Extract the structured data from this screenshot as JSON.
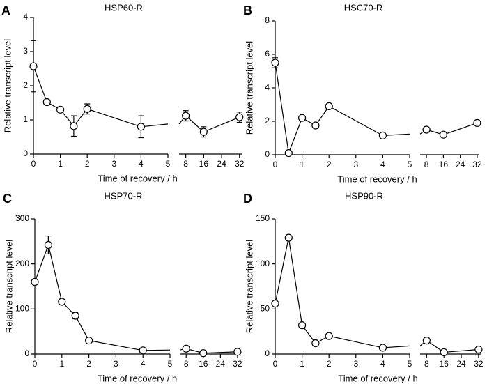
{
  "chart_data": [
    {
      "type": "line",
      "panel": "A",
      "title": "HSP60-R",
      "xlabel": "Time of recovery / h",
      "ylabel": "Relative transcript level",
      "x": [
        0,
        0.5,
        1,
        1.5,
        2,
        4,
        8,
        16,
        32
      ],
      "values": [
        2.57,
        1.52,
        1.3,
        0.82,
        1.32,
        0.8,
        1.12,
        0.65,
        1.08
      ],
      "errors": [
        0.75,
        0.08,
        0.08,
        0.3,
        0.15,
        0.32,
        0.15,
        0.15,
        0.15
      ],
      "color": "#000000",
      "xlim": [
        0,
        5
      ],
      "xticks": [
        0,
        1,
        2,
        3,
        4,
        5
      ],
      "x2lim": [
        5,
        33
      ],
      "x2ticks": [
        8,
        16,
        24,
        32
      ],
      "ylim": [
        0,
        4
      ],
      "yticks": [
        0,
        1,
        2,
        3,
        4
      ]
    },
    {
      "type": "line",
      "panel": "B",
      "title": "HSC70-R",
      "xlabel": "Time of recovery / h",
      "ylabel": "Relative transcript level",
      "x": [
        0,
        0.5,
        1,
        1.5,
        2,
        4,
        8,
        16,
        32
      ],
      "values": [
        5.5,
        0.1,
        2.2,
        1.75,
        2.9,
        1.15,
        1.5,
        1.2,
        1.9
      ],
      "errors": [
        0.3,
        0.1,
        0.1,
        0.1,
        0.1,
        0.1,
        0.1,
        0.1,
        0.1
      ],
      "color": "#000000",
      "xlim": [
        0,
        5
      ],
      "xticks": [
        0,
        1,
        2,
        3,
        4,
        5
      ],
      "x2lim": [
        5,
        33
      ],
      "x2ticks": [
        8,
        16,
        24,
        32
      ],
      "ylim": [
        0,
        8
      ],
      "yticks": [
        0,
        2,
        4,
        6,
        8
      ]
    },
    {
      "type": "line",
      "panel": "C",
      "title": "HSP70-R",
      "xlabel": "Time of recovery / h",
      "ylabel": "Relative transcript level",
      "x": [
        0,
        0.5,
        1,
        1.5,
        2,
        4,
        8,
        16,
        32
      ],
      "values": [
        160,
        242,
        116,
        85,
        30,
        8,
        12,
        2,
        5
      ],
      "errors": [
        5,
        20,
        3,
        7,
        3,
        2,
        2,
        2,
        2
      ],
      "color": "#000000",
      "xlim": [
        0,
        5
      ],
      "xticks": [
        0,
        1,
        2,
        3,
        4,
        5
      ],
      "x2lim": [
        5,
        33
      ],
      "x2ticks": [
        8,
        16,
        24,
        32
      ],
      "ylim": [
        0,
        300
      ],
      "yticks": [
        0,
        100,
        200,
        300
      ]
    },
    {
      "type": "line",
      "panel": "D",
      "title": "HSP90-R",
      "xlabel": "Time of recovery / h",
      "ylabel": "Relative transcript level",
      "x": [
        0,
        0.5,
        1,
        1.5,
        2,
        4,
        8,
        16,
        32
      ],
      "values": [
        56,
        129,
        32,
        12,
        20,
        7,
        15,
        2,
        5
      ],
      "errors": [
        2,
        2,
        2,
        2,
        2,
        1,
        1,
        1,
        1
      ],
      "color": "#000000",
      "xlim": [
        0,
        5
      ],
      "xticks": [
        0,
        1,
        2,
        3,
        4,
        5
      ],
      "x2lim": [
        5,
        33
      ],
      "x2ticks": [
        8,
        16,
        24,
        32
      ],
      "ylim": [
        0,
        150
      ],
      "yticks": [
        0,
        50,
        100,
        150
      ]
    }
  ]
}
